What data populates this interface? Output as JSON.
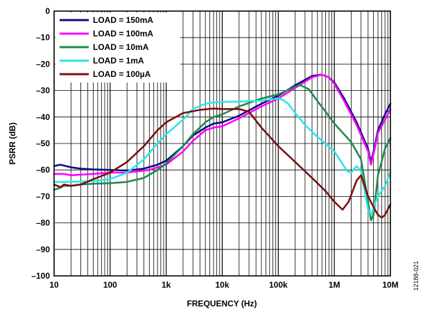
{
  "figure_id": "12188-021",
  "chart_data": {
    "type": "line",
    "xlabel": "FREQUENCY (Hz)",
    "ylabel": "PSRR (dB)",
    "x_scale": "log",
    "xlim": [
      10,
      10000000
    ],
    "ylim": [
      -100,
      0
    ],
    "x_ticks": [
      "10",
      "100",
      "1k",
      "10k",
      "100k",
      "1M",
      "10M"
    ],
    "y_ticks": [
      "0",
      "–10",
      "–20",
      "–30",
      "–40",
      "–50",
      "–60",
      "–70",
      "–80",
      "–90",
      "–100"
    ],
    "grid": true,
    "legend_position": "top-left",
    "series": [
      {
        "name": "LOAD = 150mA",
        "color": "#0d0d7a",
        "points": [
          [
            10,
            -58.5
          ],
          [
            13,
            -58
          ],
          [
            20,
            -59
          ],
          [
            30,
            -59.5
          ],
          [
            50,
            -59.8
          ],
          [
            100,
            -60
          ],
          [
            200,
            -60.2
          ],
          [
            400,
            -59.5
          ],
          [
            700,
            -58
          ],
          [
            1000,
            -56.5
          ],
          [
            2000,
            -51
          ],
          [
            3000,
            -47
          ],
          [
            5000,
            -44
          ],
          [
            7000,
            -42.5
          ],
          [
            10000,
            -42
          ],
          [
            20000,
            -39.5
          ],
          [
            50000,
            -35
          ],
          [
            100000,
            -32
          ],
          [
            200000,
            -28
          ],
          [
            400000,
            -24.5
          ],
          [
            600000,
            -24
          ],
          [
            800000,
            -25
          ],
          [
            1000000,
            -27
          ],
          [
            1500000,
            -33
          ],
          [
            2500000,
            -42
          ],
          [
            4000000,
            -52
          ],
          [
            4500000,
            -57
          ],
          [
            5000000,
            -53
          ],
          [
            6000000,
            -45
          ],
          [
            8000000,
            -39
          ],
          [
            10000000,
            -35
          ]
        ]
      },
      {
        "name": "LOAD = 100mA",
        "color": "#ff00ff",
        "points": [
          [
            10,
            -61.5
          ],
          [
            15,
            -61.5
          ],
          [
            20,
            -62
          ],
          [
            50,
            -61.5
          ],
          [
            100,
            -61
          ],
          [
            200,
            -61
          ],
          [
            500,
            -60
          ],
          [
            700,
            -59
          ],
          [
            1000,
            -58
          ],
          [
            2000,
            -53
          ],
          [
            3000,
            -49
          ],
          [
            5000,
            -45
          ],
          [
            7000,
            -44
          ],
          [
            10000,
            -43.5
          ],
          [
            20000,
            -40.5
          ],
          [
            50000,
            -36
          ],
          [
            100000,
            -33
          ],
          [
            200000,
            -29
          ],
          [
            400000,
            -25
          ],
          [
            600000,
            -24
          ],
          [
            800000,
            -25
          ],
          [
            1000000,
            -27.5
          ],
          [
            1500000,
            -34
          ],
          [
            2500000,
            -43
          ],
          [
            4000000,
            -53
          ],
          [
            4500000,
            -58
          ],
          [
            5000000,
            -54
          ],
          [
            6000000,
            -46
          ],
          [
            8000000,
            -41
          ],
          [
            10000000,
            -37
          ]
        ]
      },
      {
        "name": "LOAD = 10mA",
        "color": "#1f8a4c",
        "points": [
          [
            10,
            -67.5
          ],
          [
            12,
            -67
          ],
          [
            15,
            -66
          ],
          [
            20,
            -66
          ],
          [
            30,
            -65.5
          ],
          [
            50,
            -65.2
          ],
          [
            100,
            -65
          ],
          [
            200,
            -64.5
          ],
          [
            400,
            -63
          ],
          [
            700,
            -60
          ],
          [
            1000,
            -57.5
          ],
          [
            2000,
            -51
          ],
          [
            3000,
            -46.5
          ],
          [
            5000,
            -42
          ],
          [
            7000,
            -40
          ],
          [
            10000,
            -39
          ],
          [
            20000,
            -36
          ],
          [
            50000,
            -33
          ],
          [
            100000,
            -31.5
          ],
          [
            200000,
            -28.5
          ],
          [
            250000,
            -28
          ],
          [
            350000,
            -29.5
          ],
          [
            500000,
            -34
          ],
          [
            700000,
            -38
          ],
          [
            1000000,
            -42.5
          ],
          [
            2000000,
            -49.5
          ],
          [
            3000000,
            -56
          ],
          [
            4000000,
            -72
          ],
          [
            4500000,
            -79
          ],
          [
            5000000,
            -77
          ],
          [
            6000000,
            -62
          ],
          [
            8000000,
            -52
          ],
          [
            10000000,
            -48
          ]
        ]
      },
      {
        "name": "LOAD = 1mA",
        "color": "#2ee6e6",
        "points": [
          [
            10,
            -64.5
          ],
          [
            15,
            -64.5
          ],
          [
            20,
            -64.5
          ],
          [
            50,
            -64.2
          ],
          [
            100,
            -63.5
          ],
          [
            200,
            -61
          ],
          [
            400,
            -56
          ],
          [
            700,
            -50
          ],
          [
            1000,
            -46.5
          ],
          [
            2000,
            -41
          ],
          [
            3000,
            -37
          ],
          [
            5000,
            -35
          ],
          [
            7000,
            -34.5
          ],
          [
            10000,
            -34.3
          ],
          [
            20000,
            -34.2
          ],
          [
            50000,
            -33.8
          ],
          [
            100000,
            -33
          ],
          [
            120000,
            -33.5
          ],
          [
            150000,
            -35
          ],
          [
            200000,
            -38.5
          ],
          [
            300000,
            -43
          ],
          [
            500000,
            -47.5
          ],
          [
            1000000,
            -53
          ],
          [
            1700000,
            -60.5
          ],
          [
            2000000,
            -61
          ],
          [
            2500000,
            -58.5
          ],
          [
            3000000,
            -60.5
          ],
          [
            4000000,
            -75
          ],
          [
            4600000,
            -77
          ],
          [
            5200000,
            -73
          ],
          [
            6000000,
            -70
          ],
          [
            8000000,
            -66
          ],
          [
            10000000,
            -61
          ]
        ]
      },
      {
        "name": "LOAD = 100µA",
        "color": "#7a0f0f",
        "points": [
          [
            10,
            -65.5
          ],
          [
            13,
            -66.5
          ],
          [
            15,
            -65.5
          ],
          [
            20,
            -66
          ],
          [
            30,
            -65.5
          ],
          [
            50,
            -63.5
          ],
          [
            100,
            -61
          ],
          [
            200,
            -57
          ],
          [
            400,
            -51
          ],
          [
            700,
            -45
          ],
          [
            1000,
            -42
          ],
          [
            2000,
            -38.5
          ],
          [
            4000,
            -37.3
          ],
          [
            7000,
            -36.8
          ],
          [
            10000,
            -37
          ],
          [
            20000,
            -37
          ],
          [
            30000,
            -38
          ],
          [
            50000,
            -44
          ],
          [
            100000,
            -51
          ],
          [
            200000,
            -57
          ],
          [
            400000,
            -63
          ],
          [
            700000,
            -68
          ],
          [
            1000000,
            -72
          ],
          [
            1400000,
            -75
          ],
          [
            1800000,
            -72
          ],
          [
            2500000,
            -64
          ],
          [
            3000000,
            -62
          ],
          [
            4000000,
            -70
          ],
          [
            5000000,
            -74
          ],
          [
            6000000,
            -77
          ],
          [
            7000000,
            -78
          ],
          [
            8000000,
            -77
          ],
          [
            10000000,
            -73
          ]
        ]
      }
    ]
  }
}
